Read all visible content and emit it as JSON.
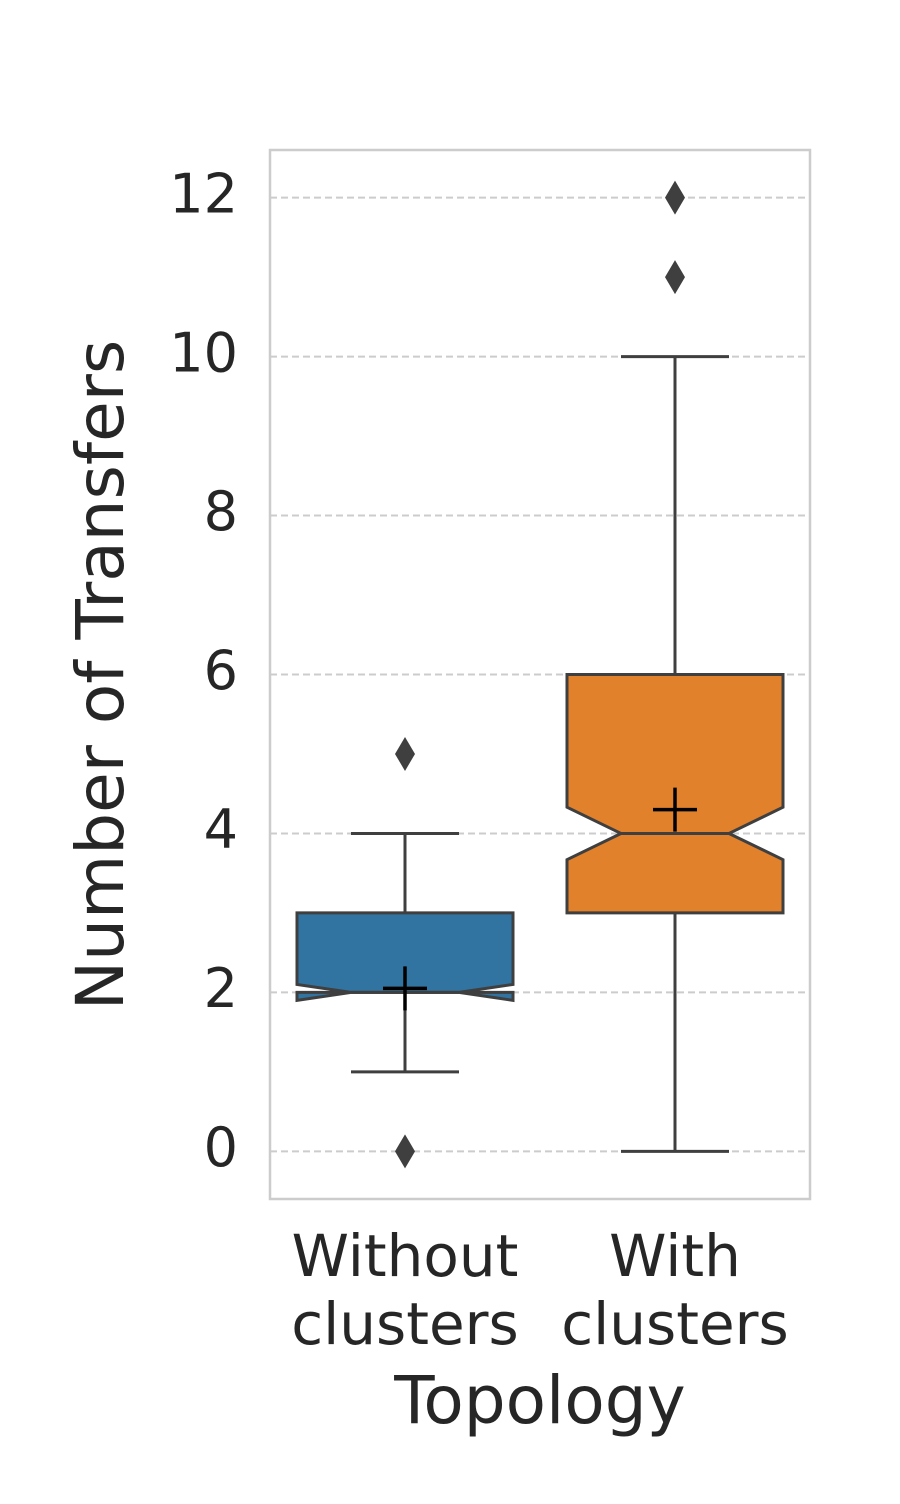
{
  "chart_data": {
    "type": "box",
    "xlabel": "Topology",
    "ylabel": "Number of Transfers",
    "categories": [
      "Without clusters",
      "With clusters"
    ],
    "colors": [
      "#3274a1",
      "#e1812c"
    ],
    "boxes": [
      {
        "whislo": 1,
        "q1": 2,
        "med": 2,
        "q3": 3,
        "whishi": 4,
        "notch_lo": 1.9,
        "notch_hi": 2.1,
        "mean": 2.05,
        "fliers": [
          0,
          5
        ]
      },
      {
        "whislo": 0,
        "q1": 3,
        "med": 4,
        "q3": 6,
        "whishi": 10,
        "notch_lo": 3.67,
        "notch_hi": 4.33,
        "mean": 4.3,
        "fliers": [
          11,
          12
        ]
      }
    ],
    "ylim": [
      -0.6,
      12.6
    ],
    "yticks": [
      0,
      2,
      4,
      6,
      8,
      10,
      12
    ],
    "grid": true,
    "notched": true,
    "show_mean": true
  }
}
